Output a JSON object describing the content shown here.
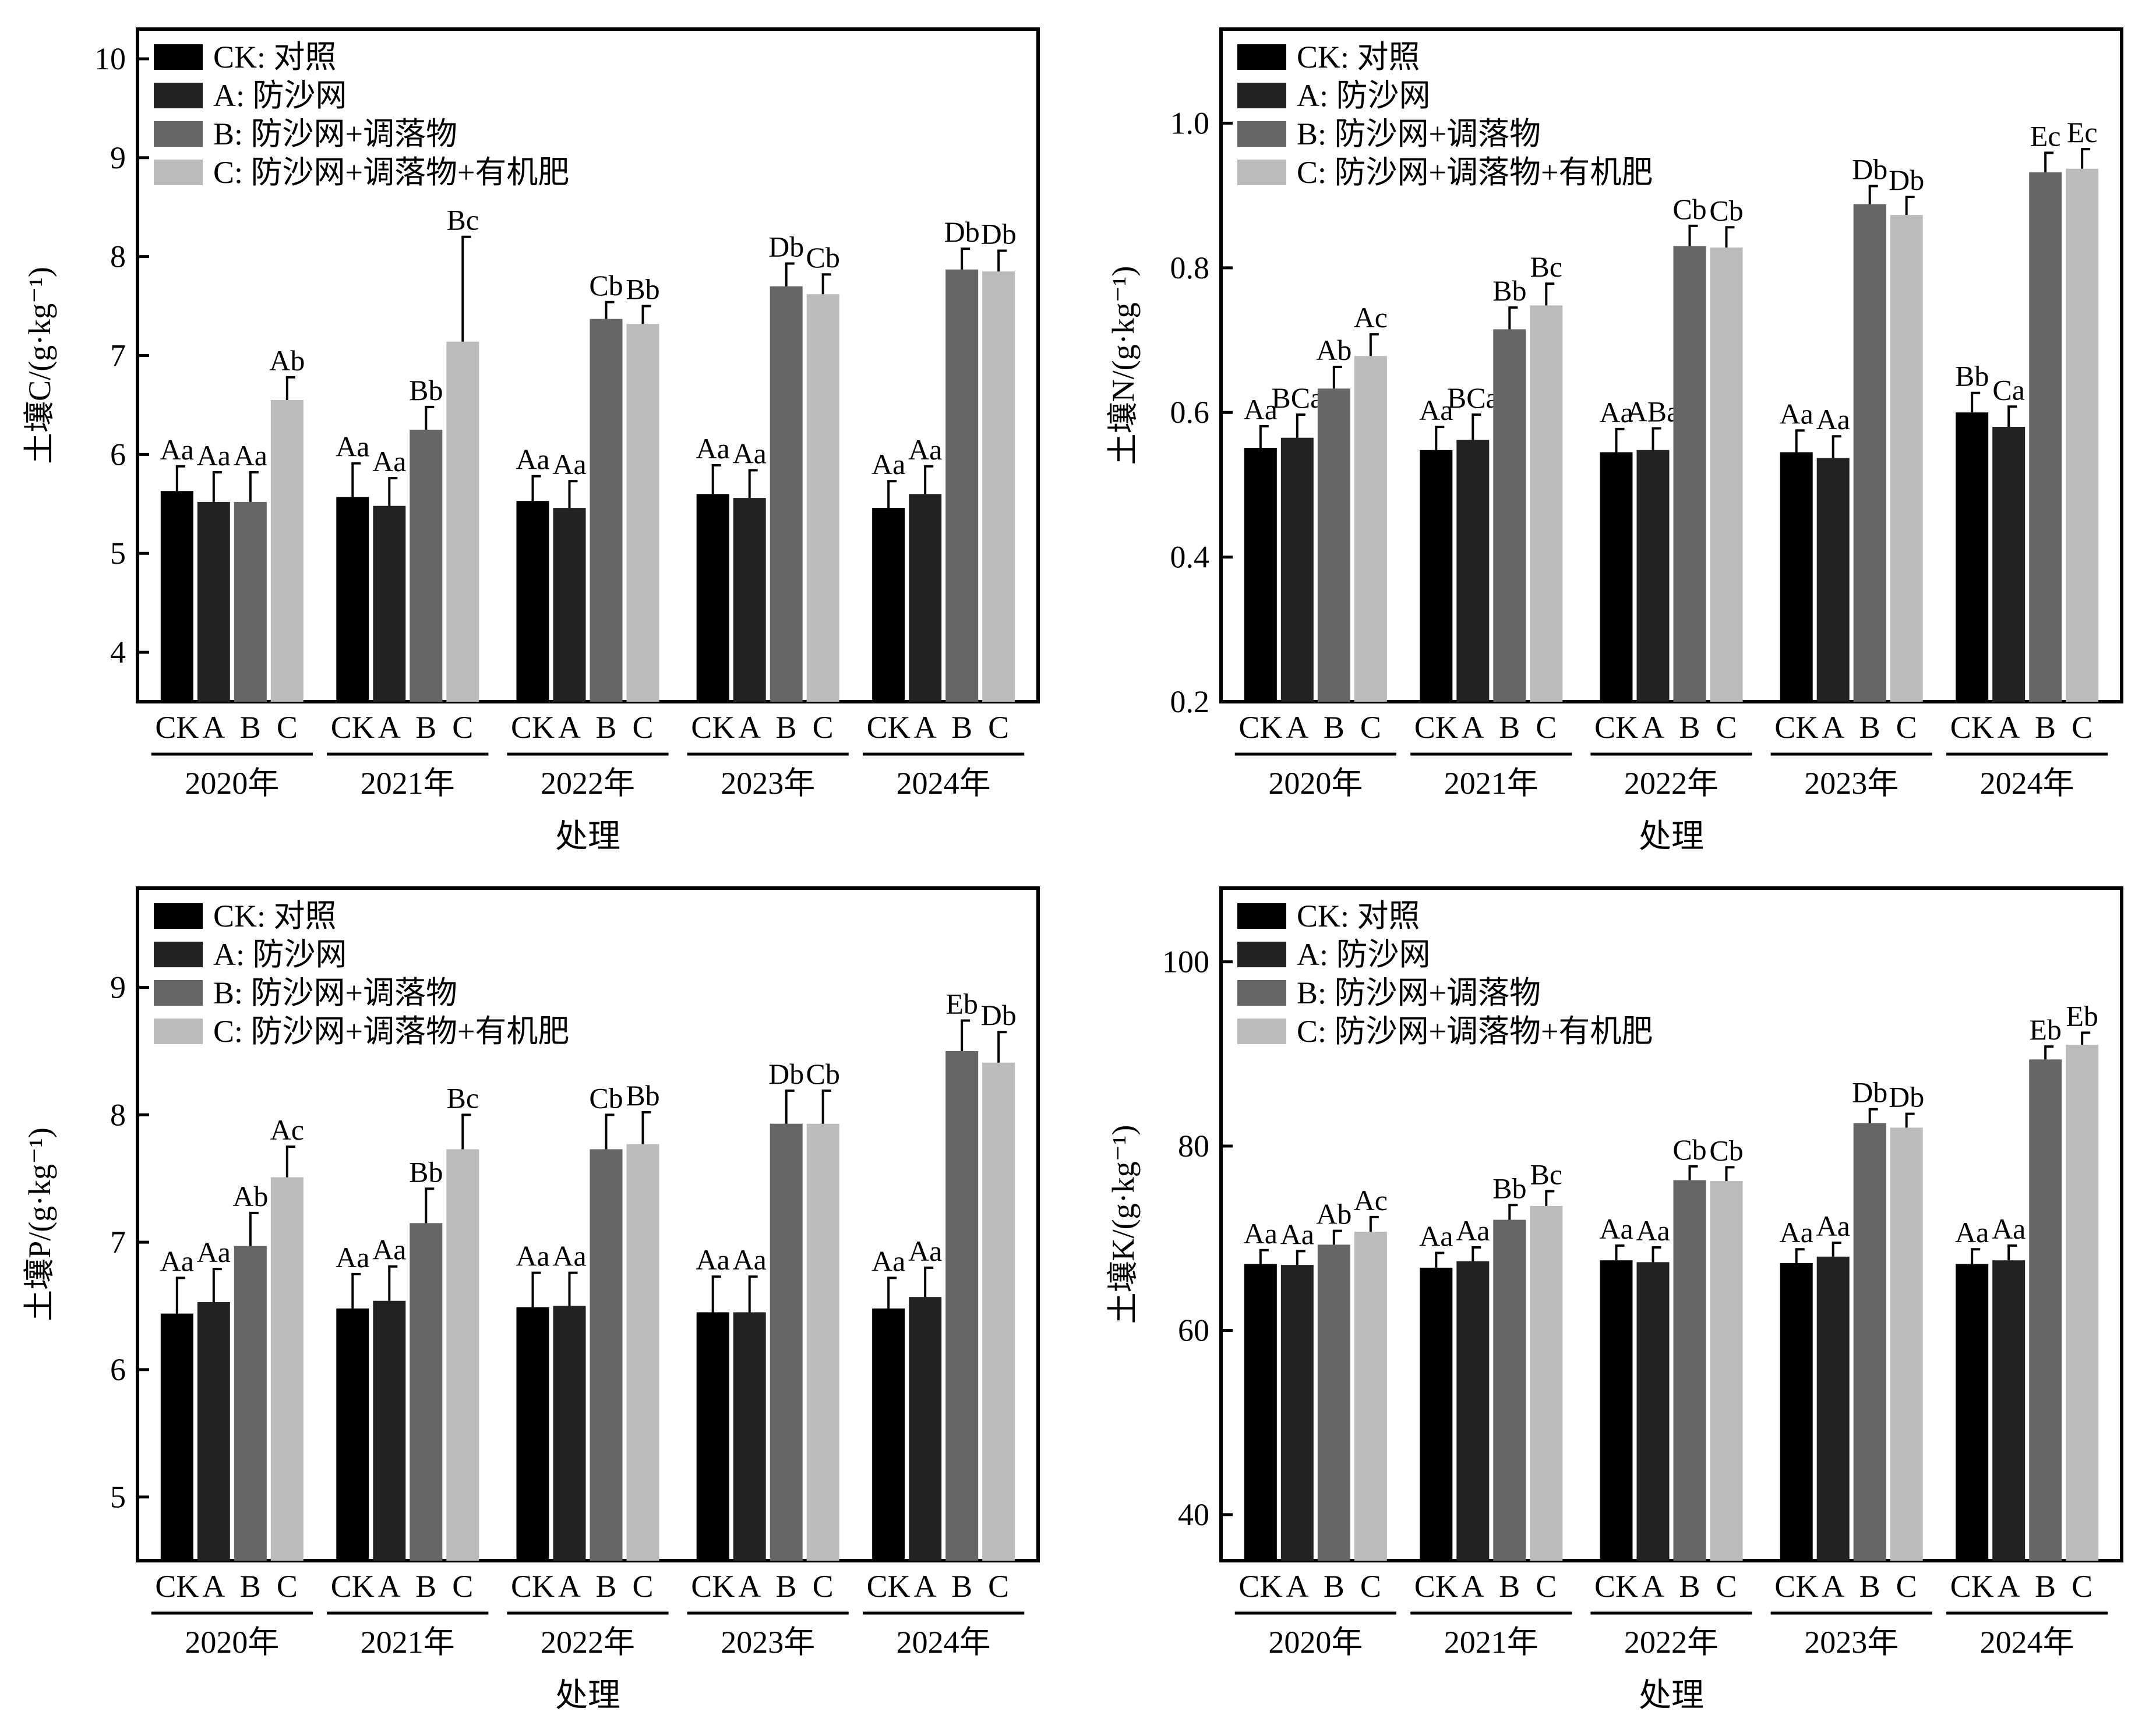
{
  "figure": {
    "categories": [
      "CK",
      "A",
      "B",
      "C"
    ],
    "groups": [
      "2020年",
      "2021年",
      "2022年",
      "2023年",
      "2024年"
    ],
    "colors": {
      "CK": "#000000",
      "A": "#222222",
      "B": "#666666",
      "C": "#bbbbbb"
    }
  },
  "chart_data": [
    {
      "type": "bar",
      "ylabel": "土壤C/(g·kg⁻¹)",
      "xlabel": "处理",
      "ylim": [
        3.5,
        10.3
      ],
      "yticks": [
        4,
        5,
        6,
        7,
        8,
        9,
        10
      ],
      "ytick_labels": [
        "4",
        "5",
        "6",
        "7",
        "8",
        "9",
        "10"
      ],
      "legend": [
        "CK: 对照",
        "A: 防沙网",
        "B: 防沙网+调落物",
        "C: 防沙网+调落物+有机肥"
      ],
      "groups": [
        "2020年",
        "2021年",
        "2022年",
        "2023年",
        "2024年"
      ],
      "categories": [
        "CK",
        "A",
        "B",
        "C"
      ],
      "values": [
        [
          5.63,
          5.52,
          5.52,
          6.55
        ],
        [
          5.57,
          5.48,
          6.25,
          7.14
        ],
        [
          5.53,
          5.46,
          7.37,
          7.32
        ],
        [
          5.6,
          5.56,
          7.7,
          7.62
        ],
        [
          5.46,
          5.6,
          7.87,
          7.85
        ]
      ],
      "errors": [
        [
          0.25,
          0.3,
          0.3,
          0.23
        ],
        [
          0.34,
          0.28,
          0.23,
          1.06
        ],
        [
          0.25,
          0.27,
          0.17,
          0.18
        ],
        [
          0.29,
          0.28,
          0.23,
          0.2
        ],
        [
          0.27,
          0.28,
          0.21,
          0.21
        ]
      ],
      "labels": [
        [
          "Aa",
          "Aa",
          "Aa",
          "Ab"
        ],
        [
          "Aa",
          "Aa",
          "Bb",
          "Bc"
        ],
        [
          "Aa",
          "Aa",
          "Cb",
          "Bb"
        ],
        [
          "Aa",
          "Aa",
          "Db",
          "Cb"
        ],
        [
          "Aa",
          "Aa",
          "Db",
          "Db"
        ]
      ]
    },
    {
      "type": "bar",
      "ylabel": "土壤N/(g·kg⁻¹)",
      "xlabel": "处理",
      "ylim": [
        0.2,
        1.13
      ],
      "yticks": [
        0.2,
        0.4,
        0.6,
        0.8,
        1.0
      ],
      "ytick_labels": [
        "0.2",
        "0.4",
        "0.6",
        "0.8",
        "1.0"
      ],
      "legend": [
        "CK: 对照",
        "A: 防沙网",
        "B: 防沙网+调落物",
        "C: 防沙网+调落物+有机肥"
      ],
      "groups": [
        "2020年",
        "2021年",
        "2022年",
        "2023年",
        "2024年"
      ],
      "categories": [
        "CK",
        "A",
        "B",
        "C"
      ],
      "values": [
        [
          0.551,
          0.565,
          0.633,
          0.678
        ],
        [
          0.548,
          0.562,
          0.715,
          0.748
        ],
        [
          0.545,
          0.548,
          0.83,
          0.828
        ],
        [
          0.545,
          0.537,
          0.888,
          0.873
        ],
        [
          0.6,
          0.58,
          0.932,
          0.937
        ]
      ],
      "errors": [
        [
          0.03,
          0.032,
          0.03,
          0.03
        ],
        [
          0.032,
          0.035,
          0.03,
          0.03
        ],
        [
          0.032,
          0.03,
          0.028,
          0.028
        ],
        [
          0.03,
          0.03,
          0.025,
          0.025
        ],
        [
          0.027,
          0.028,
          0.027,
          0.027
        ]
      ],
      "labels": [
        [
          "Aa",
          "BCa",
          "Ab",
          "Ac"
        ],
        [
          "Aa",
          "BCa",
          "Bb",
          "Bc"
        ],
        [
          "Aa",
          "ABa",
          "Cb",
          "Cb"
        ],
        [
          "Aa",
          "Aa",
          "Db",
          "Db"
        ],
        [
          "Bb",
          "Ca",
          "Ec",
          "Ec"
        ]
      ]
    },
    {
      "type": "bar",
      "ylabel": "土壤P/(g·kg⁻¹)",
      "xlabel": "处理",
      "ylim": [
        4.5,
        9.78
      ],
      "yticks": [
        5,
        6,
        7,
        8,
        9
      ],
      "ytick_labels": [
        "5",
        "6",
        "7",
        "8",
        "9"
      ],
      "legend": [
        "CK: 对照",
        "A: 防沙网",
        "B: 防沙网+调落物",
        "C: 防沙网+调落物+有机肥"
      ],
      "groups": [
        "2020年",
        "2021年",
        "2022年",
        "2023年",
        "2024年"
      ],
      "categories": [
        "CK",
        "A",
        "B",
        "C"
      ],
      "values": [
        [
          6.44,
          6.53,
          6.97,
          7.51
        ],
        [
          6.48,
          6.54,
          7.15,
          7.73
        ],
        [
          6.49,
          6.5,
          7.73,
          7.77
        ],
        [
          6.45,
          6.45,
          7.93,
          7.93
        ],
        [
          6.48,
          6.57,
          8.5,
          8.41
        ]
      ],
      "errors": [
        [
          0.28,
          0.26,
          0.26,
          0.24
        ],
        [
          0.27,
          0.27,
          0.27,
          0.27
        ],
        [
          0.27,
          0.26,
          0.27,
          0.25
        ],
        [
          0.28,
          0.28,
          0.26,
          0.26
        ],
        [
          0.24,
          0.23,
          0.24,
          0.24
        ]
      ],
      "labels": [
        [
          "Aa",
          "Aa",
          "Ab",
          "Ac"
        ],
        [
          "Aa",
          "Aa",
          "Bb",
          "Bc"
        ],
        [
          "Aa",
          "Aa",
          "Cb",
          "Bb"
        ],
        [
          "Aa",
          "Aa",
          "Db",
          "Cb"
        ],
        [
          "Aa",
          "Aa",
          "Eb",
          "Db"
        ]
      ]
    },
    {
      "type": "bar",
      "ylabel": "土壤K/(g·kg⁻¹)",
      "xlabel": "处理",
      "ylim": [
        35,
        108
      ],
      "yticks": [
        40,
        60,
        80,
        100
      ],
      "ytick_labels": [
        "40",
        "60",
        "80",
        "100"
      ],
      "legend": [
        "CK: 对照",
        "A: 防沙网",
        "B: 防沙网+调落物",
        "C: 防沙网+调落物+有机肥"
      ],
      "groups": [
        "2020年",
        "2021年",
        "2022年",
        "2023年",
        "2024年"
      ],
      "categories": [
        "CK",
        "A",
        "B",
        "C"
      ],
      "values": [
        [
          67.2,
          67.1,
          69.3,
          70.7
        ],
        [
          66.8,
          67.5,
          72.0,
          73.5
        ],
        [
          67.6,
          67.4,
          76.3,
          76.2
        ],
        [
          67.3,
          68.0,
          82.5,
          82.0
        ],
        [
          67.2,
          67.6,
          89.4,
          91.0
        ]
      ],
      "errors": [
        [
          1.5,
          1.5,
          1.5,
          1.6
        ],
        [
          1.6,
          1.5,
          1.6,
          1.6
        ],
        [
          1.6,
          1.6,
          1.5,
          1.5
        ],
        [
          1.5,
          1.5,
          1.5,
          1.5
        ],
        [
          1.6,
          1.6,
          1.4,
          1.3
        ]
      ],
      "labels": [
        [
          "Aa",
          "Aa",
          "Ab",
          "Ac"
        ],
        [
          "Aa",
          "Aa",
          "Bb",
          "Bc"
        ],
        [
          "Aa",
          "Aa",
          "Cb",
          "Cb"
        ],
        [
          "Aa",
          "Aa",
          "Db",
          "Db"
        ],
        [
          "Aa",
          "Aa",
          "Eb",
          "Eb"
        ]
      ]
    }
  ]
}
